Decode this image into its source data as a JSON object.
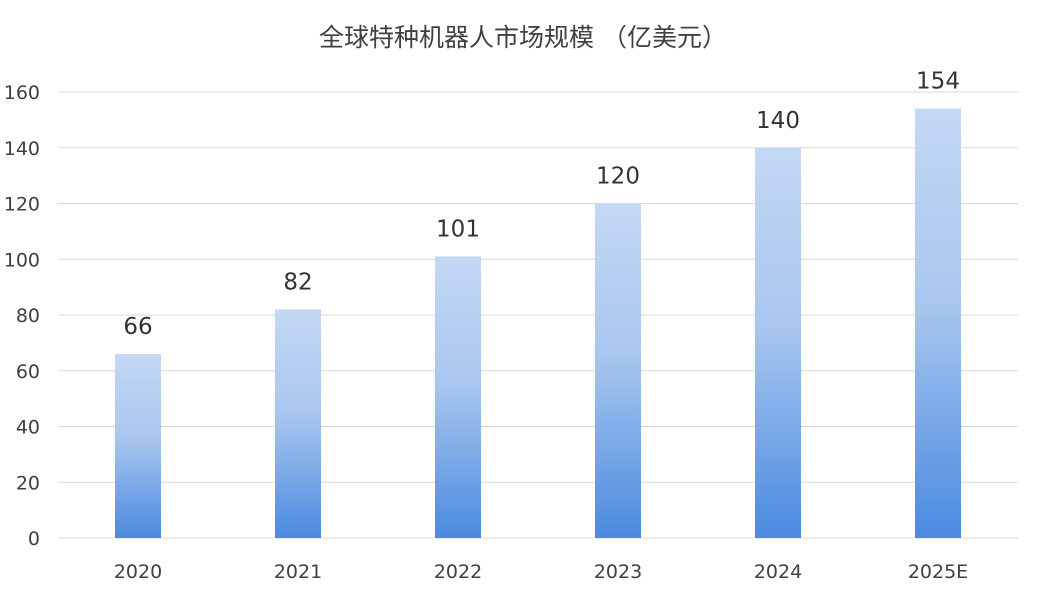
{
  "chart_data": {
    "type": "bar",
    "title": "全球特种机器人市场规模 （亿美元）",
    "categories": [
      "2020",
      "2021",
      "2022",
      "2023",
      "2024",
      "2025E"
    ],
    "values": [
      66,
      82,
      101,
      120,
      140,
      154
    ],
    "data_labels": [
      "66",
      "82",
      "101",
      "120",
      "140",
      "154"
    ],
    "y_ticks": [
      "0",
      "20",
      "40",
      "60",
      "80",
      "100",
      "120",
      "140",
      "160"
    ],
    "ylim": [
      0,
      160
    ],
    "grid": true,
    "legend": "none",
    "colors": {
      "bar_top": "#c3d8f4",
      "bar_bottom": "#4a8ae0",
      "grid": "#d9d9d9",
      "text": "#404040"
    }
  }
}
